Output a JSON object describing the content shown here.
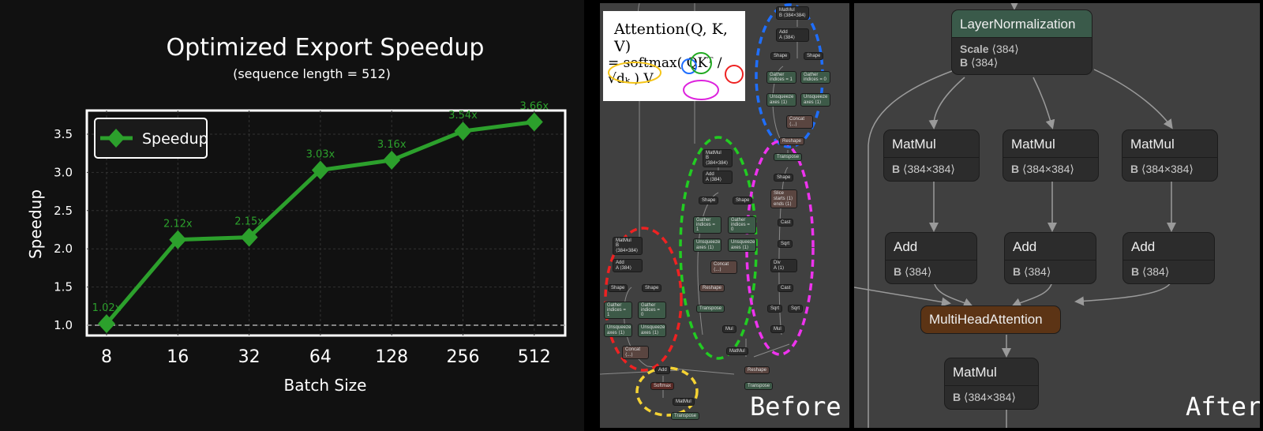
{
  "chart_data": {
    "type": "line",
    "title": "Optimized Export Speedup",
    "subtitle": "(sequence length = 512)",
    "xlabel": "Batch Size",
    "ylabel": "Speedup",
    "categories": [
      "8",
      "16",
      "32",
      "64",
      "128",
      "256",
      "512"
    ],
    "series": [
      {
        "name": "Speedup",
        "values": [
          1.02,
          2.12,
          2.15,
          3.03,
          3.16,
          3.54,
          3.66
        ],
        "color": "#2ca02c",
        "marker": "diamond"
      }
    ],
    "data_labels": [
      "1.02x",
      "2.12x",
      "2.15x",
      "3.03x",
      "3.16x",
      "3.54x",
      "3.66x"
    ],
    "yticks": [
      "1.0",
      "1.5",
      "2.0",
      "2.5",
      "3.0",
      "3.5"
    ],
    "ylim": [
      0.95,
      3.78
    ],
    "reference_line": 1.0,
    "grid": true,
    "legend_position": "upper left"
  },
  "before": {
    "label": "Before",
    "formula": {
      "line1": "Attention(Q, K, V)",
      "line2": "= softmax( QKᵀ / √dₖ ) V"
    },
    "nodes": [
      "MatMul",
      "Add",
      "Shape",
      "Gather",
      "Unsqueeze",
      "Concat",
      "Reshape",
      "Transpose",
      "Slice",
      "Cast",
      "Sqrt",
      "Div",
      "Mul",
      "Softmax"
    ],
    "node_attrs": {
      "matmul_b": "B ⟨384×384⟩",
      "add_a": "A ⟨384⟩",
      "gather1": "indices = 1",
      "gather0": "indices = 0",
      "axes": "axes ⟨1⟩",
      "concat": "⟨...⟩",
      "slice_starts": "starts ⟨1⟩",
      "slice_ends": "ends ⟨1⟩",
      "div_a": "A ⟨1⟩"
    }
  },
  "after": {
    "label": "After",
    "layernorm": {
      "title": "LayerNormalization",
      "attr1_key": "Scale",
      "attr1_val": "⟨384⟩",
      "attr2_key": "B",
      "attr2_val": "⟨384⟩"
    },
    "matmuls": [
      {
        "title": "MatMul",
        "key": "B",
        "val": "⟨384×384⟩"
      },
      {
        "title": "MatMul",
        "key": "B",
        "val": "⟨384×384⟩"
      },
      {
        "title": "MatMul",
        "key": "B",
        "val": "⟨384×384⟩"
      }
    ],
    "adds": [
      {
        "title": "Add",
        "key": "B",
        "val": "⟨384⟩"
      },
      {
        "title": "Add",
        "key": "B",
        "val": "⟨384⟩"
      },
      {
        "title": "Add",
        "key": "B",
        "val": "⟨384⟩"
      }
    ],
    "mha": {
      "title": "MultiHeadAttention"
    },
    "out_matmul": {
      "title": "MatMul",
      "key": "B",
      "val": "⟨384×384⟩"
    }
  }
}
